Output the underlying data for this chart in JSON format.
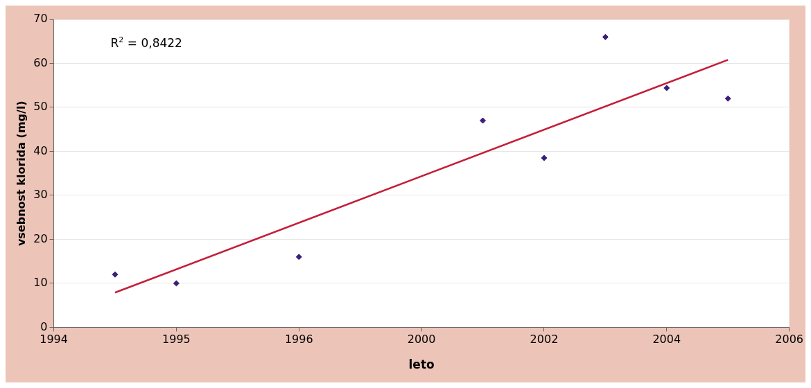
{
  "chart_data": {
    "type": "scatter",
    "xlabel": "leto",
    "ylabel": "vsebnost klorida (mg/l)",
    "categories": [
      "1994",
      null,
      "1995",
      null,
      "1996",
      null,
      "2000",
      null,
      "2002",
      null,
      "2004",
      null,
      "2006"
    ],
    "ylim": [
      0,
      70
    ],
    "yticks": [
      0,
      10,
      20,
      30,
      40,
      50,
      60,
      70
    ],
    "grid": "y",
    "marker": "diamond",
    "legend": false,
    "annotations": [
      "R$^{2}$ = 0,8422"
    ],
    "series": [
      {
        "color": "#3b1f7a",
        "values": [
          null,
          12,
          10,
          null,
          16,
          null,
          null,
          47,
          38.5,
          66,
          54.4,
          52,
          null
        ]
      },
      {
        "type": "line",
        "color": "#c41e3a",
        "marker": "none",
        "values": [
          null,
          7.9,
          null,
          null,
          null,
          null,
          null,
          null,
          null,
          null,
          null,
          60.8,
          null
        ]
      }
    ]
  }
}
